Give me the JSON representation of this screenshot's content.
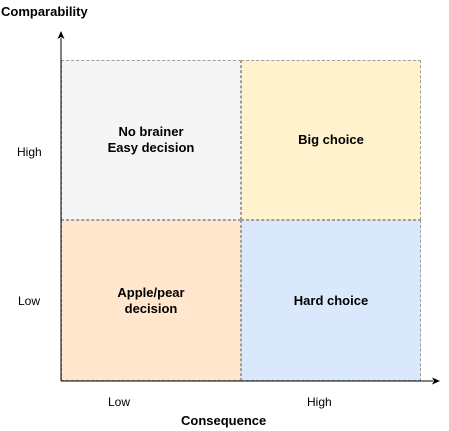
{
  "y_axis": {
    "title": "Comparability",
    "ticks": [
      "High",
      "Low"
    ]
  },
  "x_axis": {
    "title": "Consequence",
    "ticks": [
      "Low",
      "High"
    ]
  },
  "quadrants": {
    "top_left": {
      "text": "No brainer\nEasy decision",
      "fill": "#f5f5f5"
    },
    "top_right": {
      "text": "Big choice",
      "fill": "#fff2cc"
    },
    "bottom_left": {
      "text": "Apple/pear\ndecision",
      "fill": "#ffe6cc"
    },
    "bottom_right": {
      "text": "Hard choice",
      "fill": "#dae8fc"
    }
  },
  "colors": {
    "axis": "#000000",
    "quadrant_border": "#9e9e9e"
  }
}
